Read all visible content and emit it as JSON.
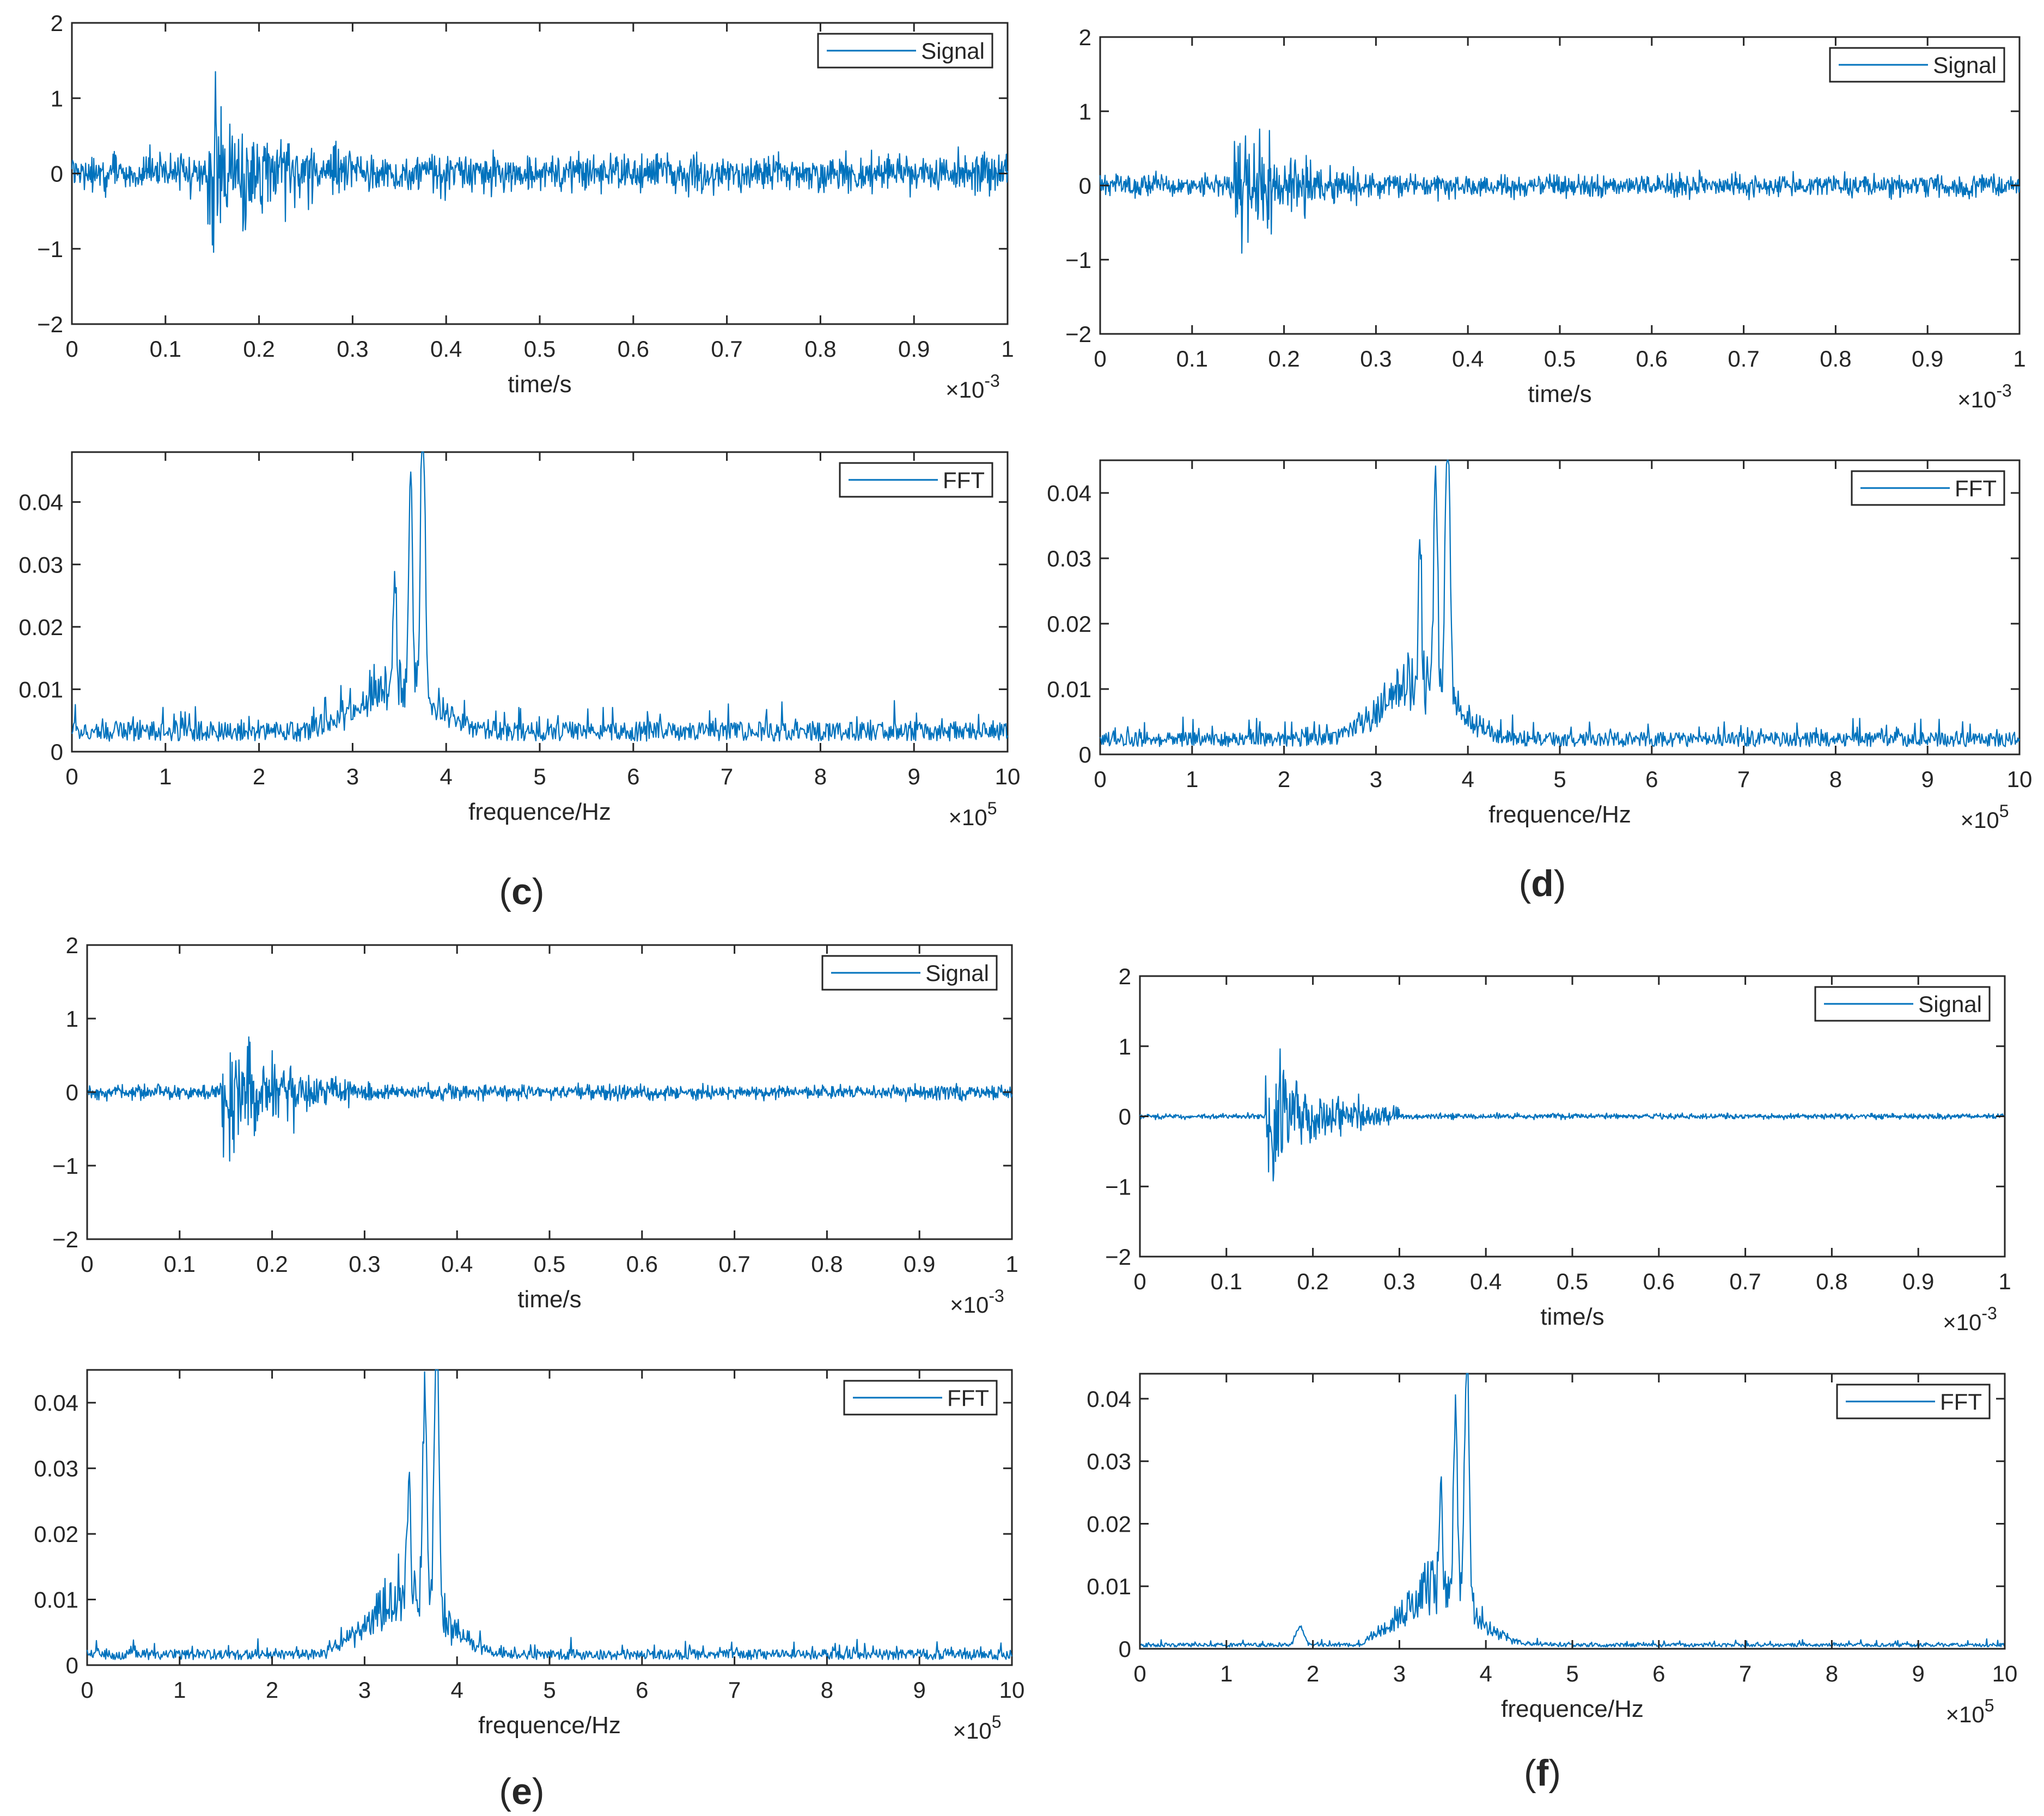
{
  "figure": {
    "panels": [
      {
        "id": "c",
        "label_open": "(",
        "label_letter": "c",
        "label_close": ")"
      },
      {
        "id": "d",
        "label_open": "(",
        "label_letter": "d",
        "label_close": ")"
      },
      {
        "id": "e",
        "label_open": "(",
        "label_letter": "e",
        "label_close": ")"
      },
      {
        "id": "f",
        "label_open": "(",
        "label_letter": "f",
        "label_close": ")"
      }
    ]
  },
  "colors": {
    "line": "#0072BD",
    "axis": "#262626",
    "background": "#ffffff"
  },
  "chart_data": [
    {
      "id": "c-signal",
      "panel": "c",
      "type": "line",
      "xlabel": "time/s",
      "ylabel": "",
      "xlim": [
        0,
        1
      ],
      "ylim": [
        -2,
        2
      ],
      "xticks": [
        0,
        0.1,
        0.2,
        0.3,
        0.4,
        0.5,
        0.6,
        0.7,
        0.8,
        0.9,
        1
      ],
      "xtick_labels": [
        "0",
        "0.1",
        "0.2",
        "0.3",
        "0.4",
        "0.5",
        "0.6",
        "0.7",
        "0.8",
        "0.9",
        "1"
      ],
      "yticks": [
        -2,
        -1,
        0,
        1,
        2
      ],
      "ytick_labels": [
        "−2",
        "−1",
        "0",
        "1",
        "2"
      ],
      "x_multiplier": {
        "base": "×10",
        "exp": "-3"
      },
      "legend": "Signal",
      "legend_position": "top-right",
      "series": [
        {
          "name": "Signal",
          "kind": "signal",
          "seed": 11,
          "noise": 0.38,
          "burst_start": 0.145,
          "burst_end": 0.3,
          "burst_amp": 1.5,
          "burst_decay": 7
        }
      ]
    },
    {
      "id": "c-fft",
      "panel": "c",
      "type": "line",
      "xlabel": "frequence/Hz",
      "ylabel": "",
      "xlim": [
        0,
        10
      ],
      "ylim": [
        0,
        0.048
      ],
      "xticks": [
        0,
        1,
        2,
        3,
        4,
        5,
        6,
        7,
        8,
        9,
        10
      ],
      "xtick_labels": [
        "0",
        "1",
        "2",
        "3",
        "4",
        "5",
        "6",
        "7",
        "8",
        "9",
        "10"
      ],
      "yticks": [
        0,
        0.01,
        0.02,
        0.03,
        0.04
      ],
      "ytick_labels": [
        "0",
        "0.01",
        "0.02",
        "0.03",
        "0.04"
      ],
      "x_multiplier": {
        "base": "×10",
        "exp": "5"
      },
      "legend": "FFT",
      "legend_position": "top-right",
      "series": [
        {
          "name": "FFT",
          "kind": "fft",
          "seed": 21,
          "noise": 0.0048,
          "noise_jit": 0.004,
          "hump": 0.008,
          "peak": 0.047,
          "peak_x": 3.75,
          "side_peak": 0.032
        }
      ]
    },
    {
      "id": "d-signal",
      "panel": "d",
      "type": "line",
      "xlabel": "time/s",
      "ylabel": "",
      "xlim": [
        0,
        1
      ],
      "ylim": [
        -2,
        2
      ],
      "xticks": [
        0,
        0.1,
        0.2,
        0.3,
        0.4,
        0.5,
        0.6,
        0.7,
        0.8,
        0.9,
        1
      ],
      "xtick_labels": [
        "0",
        "0.1",
        "0.2",
        "0.3",
        "0.4",
        "0.5",
        "0.6",
        "0.7",
        "0.8",
        "0.9",
        "1"
      ],
      "yticks": [
        -2,
        -1,
        0,
        1,
        2
      ],
      "ytick_labels": [
        "−2",
        "−1",
        "0",
        "1",
        "2"
      ],
      "x_multiplier": {
        "base": "×10",
        "exp": "-3"
      },
      "legend": "Signal",
      "legend_position": "top-right",
      "series": [
        {
          "name": "Signal",
          "kind": "signal",
          "seed": 12,
          "noise": 0.24,
          "burst_start": 0.145,
          "burst_end": 0.3,
          "burst_amp": 1.35,
          "burst_decay": 8
        }
      ]
    },
    {
      "id": "d-fft",
      "panel": "d",
      "type": "line",
      "xlabel": "frequence/Hz",
      "ylabel": "",
      "xlim": [
        0,
        10
      ],
      "ylim": [
        0,
        0.045
      ],
      "xticks": [
        0,
        1,
        2,
        3,
        4,
        5,
        6,
        7,
        8,
        9,
        10
      ],
      "xtick_labels": [
        "0",
        "1",
        "2",
        "3",
        "4",
        "5",
        "6",
        "7",
        "8",
        "9",
        "10"
      ],
      "yticks": [
        0,
        0.01,
        0.02,
        0.03,
        0.04
      ],
      "ytick_labels": [
        "0",
        "0.01",
        "0.02",
        "0.03",
        "0.04"
      ],
      "x_multiplier": {
        "base": "×10",
        "exp": "5"
      },
      "legend": "FFT",
      "legend_position": "top-right",
      "series": [
        {
          "name": "FFT",
          "kind": "fft",
          "seed": 22,
          "noise": 0.0034,
          "noise_jit": 0.003,
          "hump": 0.01,
          "peak": 0.045,
          "peak_x": 3.78,
          "side_peak": 0.034
        }
      ]
    },
    {
      "id": "e-signal",
      "panel": "e",
      "type": "line",
      "xlabel": "time/s",
      "ylabel": "",
      "xlim": [
        0,
        1
      ],
      "ylim": [
        -2,
        2
      ],
      "xticks": [
        0,
        0.1,
        0.2,
        0.3,
        0.4,
        0.5,
        0.6,
        0.7,
        0.8,
        0.9,
        1
      ],
      "xtick_labels": [
        "0",
        "0.1",
        "0.2",
        "0.3",
        "0.4",
        "0.5",
        "0.6",
        "0.7",
        "0.8",
        "0.9",
        "1"
      ],
      "yticks": [
        -2,
        -1,
        0,
        1,
        2
      ],
      "ytick_labels": [
        "−2",
        "−1",
        "0",
        "1",
        "2"
      ],
      "x_multiplier": {
        "base": "×10",
        "exp": "-3"
      },
      "legend": "Signal",
      "legend_position": "top-right",
      "series": [
        {
          "name": "Signal",
          "kind": "signal",
          "seed": 13,
          "noise": 0.15,
          "burst_start": 0.145,
          "burst_end": 0.285,
          "burst_amp": 1.4,
          "burst_decay": 6
        }
      ]
    },
    {
      "id": "e-fft",
      "panel": "e",
      "type": "line",
      "xlabel": "frequence/Hz",
      "ylabel": "",
      "xlim": [
        0,
        10
      ],
      "ylim": [
        0,
        0.045
      ],
      "xticks": [
        0,
        1,
        2,
        3,
        4,
        5,
        6,
        7,
        8,
        9,
        10
      ],
      "xtick_labels": [
        "0",
        "1",
        "2",
        "3",
        "4",
        "5",
        "6",
        "7",
        "8",
        "9",
        "10"
      ],
      "yticks": [
        0,
        0.01,
        0.02,
        0.03,
        0.04
      ],
      "ytick_labels": [
        "0",
        "0.01",
        "0.02",
        "0.03",
        "0.04"
      ],
      "x_multiplier": {
        "base": "×10",
        "exp": "5"
      },
      "legend": "FFT",
      "legend_position": "top-right",
      "series": [
        {
          "name": "FFT",
          "kind": "fft",
          "seed": 23,
          "noise": 0.0024,
          "noise_jit": 0.002,
          "hump": 0.011,
          "peak": 0.045,
          "peak_x": 3.78,
          "side_peak": 0.031
        }
      ]
    },
    {
      "id": "f-signal",
      "panel": "f",
      "type": "line",
      "xlabel": "time/s",
      "ylabel": "",
      "xlim": [
        0,
        1
      ],
      "ylim": [
        -2,
        2
      ],
      "xticks": [
        0,
        0.1,
        0.2,
        0.3,
        0.4,
        0.5,
        0.6,
        0.7,
        0.8,
        0.9,
        1
      ],
      "xtick_labels": [
        "0",
        "0.1",
        "0.2",
        "0.3",
        "0.4",
        "0.5",
        "0.6",
        "0.7",
        "0.8",
        "0.9",
        "1"
      ],
      "yticks": [
        -2,
        -1,
        0,
        1,
        2
      ],
      "ytick_labels": [
        "−2",
        "−1",
        "0",
        "1",
        "2"
      ],
      "x_multiplier": {
        "base": "×10",
        "exp": "-3"
      },
      "legend": "Signal",
      "legend_position": "top-right",
      "series": [
        {
          "name": "Signal",
          "kind": "signal",
          "seed": 14,
          "noise": 0.06,
          "burst_start": 0.145,
          "burst_end": 0.3,
          "burst_amp": 1.45,
          "burst_decay": 6
        }
      ]
    },
    {
      "id": "f-fft",
      "panel": "f",
      "type": "line",
      "xlabel": "frequence/Hz",
      "ylabel": "",
      "xlim": [
        0,
        10
      ],
      "ylim": [
        0,
        0.044
      ],
      "xticks": [
        0,
        1,
        2,
        3,
        4,
        5,
        6,
        7,
        8,
        9,
        10
      ],
      "xtick_labels": [
        "0",
        "1",
        "2",
        "3",
        "4",
        "5",
        "6",
        "7",
        "8",
        "9",
        "10"
      ],
      "yticks": [
        0,
        0.01,
        0.02,
        0.03,
        0.04
      ],
      "ytick_labels": [
        "0",
        "0.01",
        "0.02",
        "0.03",
        "0.04"
      ],
      "x_multiplier": {
        "base": "×10",
        "exp": "5"
      },
      "legend": "FFT",
      "legend_position": "top-right",
      "series": [
        {
          "name": "FFT",
          "kind": "fft",
          "seed": 24,
          "noise": 0.0009,
          "noise_jit": 0.0008,
          "hump": 0.011,
          "peak": 0.043,
          "peak_x": 3.78,
          "side_peak": 0.031,
          "bump_x": 1.85,
          "bump": 0.003
        }
      ]
    }
  ]
}
